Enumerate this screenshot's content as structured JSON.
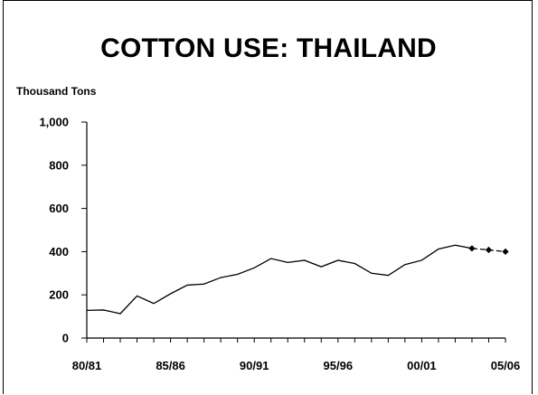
{
  "chart_data": {
    "type": "line",
    "title": "COTTON USE: THAILAND",
    "ylabel": "Thousand Tons",
    "xlabel": "",
    "ylim": [
      0,
      1000
    ],
    "y_ticks": [
      0,
      200,
      400,
      600,
      800,
      1000
    ],
    "y_tick_labels": [
      "0",
      "200",
      "400",
      "600",
      "800",
      "1,000"
    ],
    "x_tick_labels": [
      "80/81",
      "85/86",
      "90/91",
      "95/96",
      "00/01",
      "05/06"
    ],
    "categories": [
      "80/81",
      "81/82",
      "82/83",
      "83/84",
      "84/85",
      "85/86",
      "86/87",
      "87/88",
      "88/89",
      "89/90",
      "90/91",
      "91/92",
      "92/93",
      "93/94",
      "94/95",
      "95/96",
      "96/97",
      "97/98",
      "98/99",
      "99/00",
      "00/01",
      "01/02",
      "02/03",
      "03/04",
      "04/05",
      "05/06"
    ],
    "series": [
      {
        "style": "solid",
        "x": [
          "80/81",
          "81/82",
          "82/83",
          "83/84",
          "84/85",
          "85/86",
          "86/87",
          "87/88",
          "88/89",
          "89/90",
          "90/91",
          "91/92",
          "92/93",
          "93/94",
          "94/95",
          "95/96",
          "96/97",
          "97/98",
          "98/99",
          "99/00",
          "00/01",
          "01/02",
          "02/03",
          "03/04"
        ],
        "values": [
          128,
          130,
          113,
          195,
          160,
          205,
          245,
          250,
          280,
          295,
          325,
          368,
          350,
          360,
          330,
          360,
          345,
          300,
          290,
          340,
          360,
          412,
          430,
          415
        ]
      },
      {
        "style": "dashed-markers",
        "x": [
          "03/04",
          "04/05",
          "05/06"
        ],
        "values": [
          415,
          408,
          400
        ]
      }
    ],
    "grid": false,
    "legend": "none"
  },
  "colors": {
    "line": "#000000",
    "axis": "#000000",
    "background": "#ffffff"
  }
}
